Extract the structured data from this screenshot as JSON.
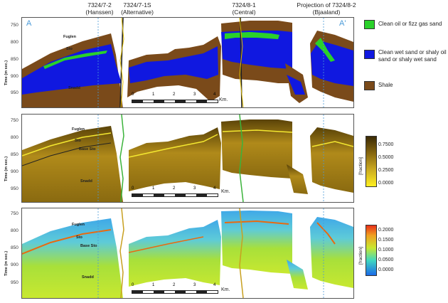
{
  "wells": [
    {
      "name": "7324/7-2",
      "sub": "(Hanssen)"
    },
    {
      "name": "7324/7-1S",
      "sub": "(Alternative)"
    },
    {
      "name": "7324/8-1",
      "sub": "(Central)"
    },
    {
      "name": "Projection of  7324/8-2",
      "sub": "(Bjaaland)"
    }
  ],
  "section_ends": {
    "left": "A",
    "right": "A'"
  },
  "axis": {
    "ylabel": "Time (m sec.)",
    "ticks": [
      "750",
      "800",
      "850",
      "900",
      "950"
    ]
  },
  "horizons": {
    "top": "Fuglen",
    "sto": "Sto",
    "base": "Base Sto",
    "bottom": "Snadd"
  },
  "scale_bar": {
    "ticks": [
      "0",
      "1",
      "2",
      "3",
      "4"
    ],
    "unit": "Km."
  },
  "legend": [
    {
      "label": "Clean oil or fizz gas sand",
      "color": "#2ad12a"
    },
    {
      "label": "Clean wet sand or shaly oil sand or shaly wet sand",
      "color": "#1018e0"
    },
    {
      "label": "Shale",
      "color": "#7a4a1a"
    }
  ],
  "colorbar_mid": {
    "title": "[fraction]",
    "labels": [
      "0.7500",
      "0.5000",
      "0.2500",
      "0.0000"
    ]
  },
  "colorbar_bottom": {
    "title": "[fraction]",
    "labels": [
      "0.2000",
      "0.1500",
      "0.1000",
      "0.0500",
      "0.0000"
    ]
  }
}
